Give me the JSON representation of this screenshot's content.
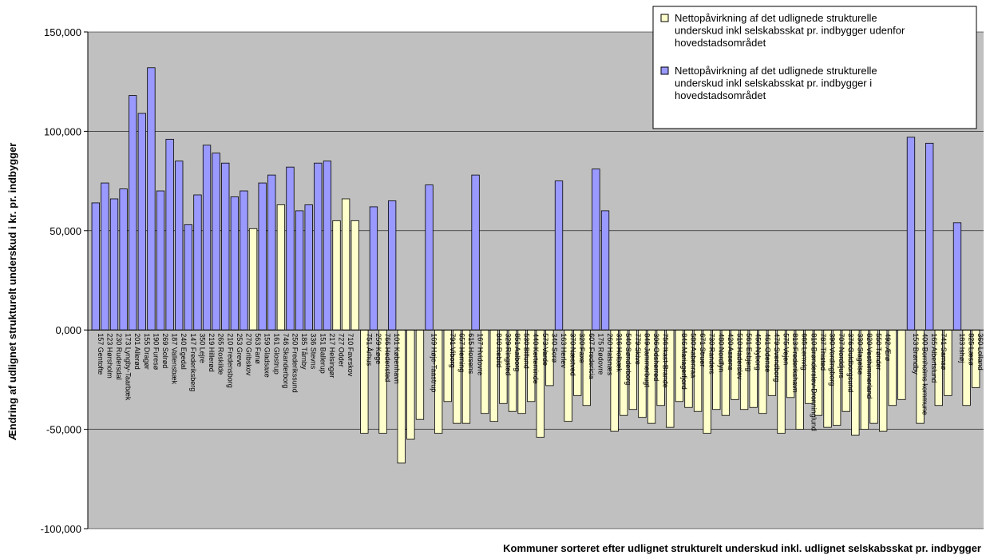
{
  "chart_data": {
    "type": "bar",
    "ylabel": "Ændring af udlignet strukturelt underskud i kr. pr. indbygger",
    "xlabel": "Kommuner sorteret efter udlignet strukturelt underskud inkl. udlignet selskabsskat pr. indbygger",
    "ylim": [
      -100000,
      150000
    ],
    "yticks": [
      "-100,000",
      "-50,000",
      "0,000",
      "50,000",
      "100,000",
      "150,000"
    ],
    "ytick_values": [
      -100000,
      -50000,
      0,
      50000,
      100000,
      150000
    ],
    "grid": true,
    "legend_position": "top-right",
    "colors": {
      "outside": "#ffffcc",
      "capital": "#9999ff",
      "plot_bg": "#c0c0c0",
      "outline": "#000000"
    },
    "series": [
      {
        "key": "outside",
        "name": "Nettopåvirkning af det udlignede strukturelle underskud inkl selskabsskat pr. indbygger udenfor hovedstadsområdet"
      },
      {
        "key": "capital",
        "name": "Nettopåvirkning af det udlignede strukturelle underskud inkl selskabsskat pr. indbygger i hovedstadsområdet"
      }
    ],
    "bars": [
      {
        "label": "157 Gentofte",
        "value": 64000,
        "series": "capital"
      },
      {
        "label": "223 Hørsholm",
        "value": 74000,
        "series": "capital"
      },
      {
        "label": "230 Rudersdal",
        "value": 66000,
        "series": "capital"
      },
      {
        "label": "173 Lyngby-Taarbæk",
        "value": 71000,
        "series": "capital"
      },
      {
        "label": "201 Allerød",
        "value": 118000,
        "series": "capital"
      },
      {
        "label": "155 Dragør",
        "value": 109000,
        "series": "capital"
      },
      {
        "label": "190 Furesø",
        "value": 132000,
        "series": "capital"
      },
      {
        "label": "269 Solrød",
        "value": 70000,
        "series": "capital"
      },
      {
        "label": "187 Vallensbæk",
        "value": 96000,
        "series": "capital"
      },
      {
        "label": "240 Egedal",
        "value": 85000,
        "series": "capital"
      },
      {
        "label": "147 Frederiksberg",
        "value": 53000,
        "series": "capital"
      },
      {
        "label": "350 Lejre",
        "value": 68000,
        "series": "capital"
      },
      {
        "label": "219 Hillerød",
        "value": 93000,
        "series": "capital"
      },
      {
        "label": "265 Roskilde",
        "value": 89000,
        "series": "capital"
      },
      {
        "label": "210 Fredensborg",
        "value": 84000,
        "series": "capital"
      },
      {
        "label": "253 Greve",
        "value": 67000,
        "series": "capital"
      },
      {
        "label": "270 Gribskov",
        "value": 70000,
        "series": "capital"
      },
      {
        "label": "563 Fanø",
        "value": 51000,
        "series": "outside"
      },
      {
        "label": "159 Gladsaxe",
        "value": 74000,
        "series": "capital"
      },
      {
        "label": "161 Glostrup",
        "value": 78000,
        "series": "capital"
      },
      {
        "label": "746 Skanderborg",
        "value": 63000,
        "series": "outside"
      },
      {
        "label": "250 Frederikssund",
        "value": 82000,
        "series": "capital"
      },
      {
        "label": "185 Tårnby",
        "value": 60000,
        "series": "capital"
      },
      {
        "label": "336 Stevns",
        "value": 63000,
        "series": "capital"
      },
      {
        "label": "151 Ballerup",
        "value": 84000,
        "series": "capital"
      },
      {
        "label": "217 Helsingør",
        "value": 85000,
        "series": "capital"
      },
      {
        "label": "727 Odder",
        "value": 55000,
        "series": "outside"
      },
      {
        "label": "710 Favrskov",
        "value": 66000,
        "series": "outside"
      },
      {
        "label": "",
        "value": 55000,
        "series": "outside"
      },
      {
        "label": "751 Århus",
        "value": -52000,
        "series": "outside"
      },
      {
        "label": "259 Køge",
        "value": 62000,
        "series": "capital"
      },
      {
        "label": "766 Hedensted",
        "value": -52000,
        "series": "outside"
      },
      {
        "label": "101 København",
        "value": 65000,
        "series": "capital"
      },
      {
        "label": "",
        "value": -67000,
        "series": "outside"
      },
      {
        "label": "",
        "value": -55000,
        "series": "outside"
      },
      {
        "label": "",
        "value": -45000,
        "series": "outside"
      },
      {
        "label": "169 Høje-Taastrup",
        "value": 73000,
        "series": "capital"
      },
      {
        "label": "",
        "value": -52000,
        "series": "outside"
      },
      {
        "label": "791 Viborg",
        "value": -36000,
        "series": "outside"
      },
      {
        "label": "657 Herning",
        "value": -47000,
        "series": "outside"
      },
      {
        "label": "615 Horsens",
        "value": -47000,
        "series": "outside"
      },
      {
        "label": "167 Hvidovre",
        "value": 78000,
        "series": "capital"
      },
      {
        "label": "",
        "value": -42000,
        "series": "outside"
      },
      {
        "label": "840 Rebild",
        "value": -46000,
        "series": "outside"
      },
      {
        "label": "329 Ringsted",
        "value": -37000,
        "series": "outside"
      },
      {
        "label": "851 Aalborg",
        "value": -41000,
        "series": "outside"
      },
      {
        "label": "530 Billund",
        "value": -42000,
        "series": "outside"
      },
      {
        "label": "440 Kerteminde",
        "value": -36000,
        "series": "outside"
      },
      {
        "label": "573 Varde",
        "value": -54000,
        "series": "outside"
      },
      {
        "label": "340 Sorø",
        "value": -28000,
        "series": "outside"
      },
      {
        "label": "163 Herlev",
        "value": 75000,
        "series": "capital"
      },
      {
        "label": "370 Næstved",
        "value": -46000,
        "series": "outside"
      },
      {
        "label": "320 Faxe",
        "value": -33000,
        "series": "outside"
      },
      {
        "label": "607 Fredericia",
        "value": -38000,
        "series": "outside"
      },
      {
        "label": "175 Rødovre",
        "value": 81000,
        "series": "capital"
      },
      {
        "label": "260 Halsnæs",
        "value": 60000,
        "series": "capital"
      },
      {
        "label": "316 Holbæk",
        "value": -51000,
        "series": "outside"
      },
      {
        "label": "540 Sønderborg",
        "value": -43000,
        "series": "outside"
      },
      {
        "label": "779 Skive",
        "value": -40000,
        "series": "outside"
      },
      {
        "label": "849 Jammerbugt",
        "value": -44000,
        "series": "outside"
      },
      {
        "label": "306 Odsherred",
        "value": -47000,
        "series": "outside"
      },
      {
        "label": "756 Ikast-Brande",
        "value": -38000,
        "series": "outside"
      },
      {
        "label": "",
        "value": -49000,
        "series": "outside"
      },
      {
        "label": "846 Mariagerfjord",
        "value": -36000,
        "series": "outside"
      },
      {
        "label": "580 Aabenraa",
        "value": -39000,
        "series": "outside"
      },
      {
        "label": "671 Struer",
        "value": -41000,
        "series": "outside"
      },
      {
        "label": "730 Randers",
        "value": -52000,
        "series": "outside"
      },
      {
        "label": "480 Nordfyn",
        "value": -40000,
        "series": "outside"
      },
      {
        "label": "420 Assens",
        "value": -43000,
        "series": "outside"
      },
      {
        "label": "510 Haderslev",
        "value": -35000,
        "series": "outside"
      },
      {
        "label": "561 Esbjerg",
        "value": -40000,
        "series": "outside"
      },
      {
        "label": "450 Nyborg",
        "value": -39000,
        "series": "outside"
      },
      {
        "label": "461 Odense",
        "value": -42000,
        "series": "outside"
      },
      {
        "label": "479 Svendborg",
        "value": -33000,
        "series": "outside"
      },
      {
        "label": "575 Vejen",
        "value": -52000,
        "series": "outside"
      },
      {
        "label": "813 Frederikshavn",
        "value": -34000,
        "series": "outside"
      },
      {
        "label": "665 Lemvig",
        "value": -50000,
        "series": "outside"
      },
      {
        "label": "810 Brønderslev-Dronninglund",
        "value": -37000,
        "series": "outside"
      },
      {
        "label": "787 Thisted",
        "value": -43000,
        "series": "outside"
      },
      {
        "label": "390 Vordingborg",
        "value": -49000,
        "series": "outside"
      },
      {
        "label": "707 Norddjurs",
        "value": -48000,
        "series": "outside"
      },
      {
        "label": "376 Guldborgsund",
        "value": -41000,
        "series": "outside"
      },
      {
        "label": "330 Slagelse",
        "value": -53000,
        "series": "outside"
      },
      {
        "label": "820 Vesthimmerland",
        "value": -50000,
        "series": "outside"
      },
      {
        "label": "550 Tønder",
        "value": -47000,
        "series": "outside"
      },
      {
        "label": "492 Ærø",
        "value": -51000,
        "series": "outside"
      },
      {
        "label": "",
        "value": -38000,
        "series": "outside"
      },
      {
        "label": "",
        "value": -35000,
        "series": "outside"
      },
      {
        "label": "153 Brøndby",
        "value": 97000,
        "series": "capital"
      },
      {
        "label": "400 Bornholms kommune",
        "value": -47000,
        "series": "outside"
      },
      {
        "label": "165 Albertslund",
        "value": 94000,
        "series": "capital"
      },
      {
        "label": "741 Samsø",
        "value": -38000,
        "series": "outside"
      },
      {
        "label": "",
        "value": -33000,
        "series": "outside"
      },
      {
        "label": "183 Ishøj",
        "value": 54000,
        "series": "capital"
      },
      {
        "label": "825 Læsø",
        "value": -38000,
        "series": "outside"
      },
      {
        "label": "360 Lolland",
        "value": -29000,
        "series": "outside"
      }
    ]
  }
}
